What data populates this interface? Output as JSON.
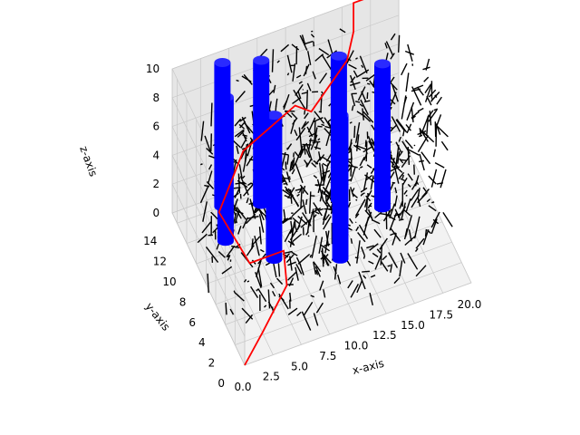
{
  "chart_data": {
    "type": "3d-line",
    "title": "",
    "xlabel": "x-axis",
    "ylabel": "y-axis",
    "zlabel": "z-axis",
    "xlim": [
      0,
      20
    ],
    "ylim": [
      0,
      15
    ],
    "zlim": [
      0,
      10
    ],
    "x_ticks": [
      "0.0",
      "2.5",
      "5.0",
      "7.5",
      "10.0",
      "12.5",
      "15.0",
      "17.5",
      "20.0"
    ],
    "y_ticks": [
      "0",
      "2",
      "4",
      "6",
      "8",
      "10",
      "12",
      "14"
    ],
    "z_ticks": [
      "0",
      "2",
      "4",
      "6",
      "8",
      "10"
    ],
    "grid": true,
    "colors": {
      "random_segments": "#000000",
      "path": "#ff0000",
      "obstacles": "#0000ff",
      "grid_line": "#c8c8c8",
      "pane": "#f2f2f2"
    },
    "obstacles": [
      {
        "x": 3,
        "y": 11,
        "z": [
          0,
          10
        ]
      },
      {
        "x": 4,
        "y": 14,
        "z": [
          0,
          10
        ]
      },
      {
        "x": 6,
        "y": 8,
        "z": [
          0,
          10
        ]
      },
      {
        "x": 7,
        "y": 13,
        "z": [
          0,
          10
        ]
      },
      {
        "x": 11,
        "y": 6,
        "z": [
          0,
          10
        ]
      },
      {
        "x": 13,
        "y": 11,
        "z": [
          0,
          10
        ]
      },
      {
        "x": 16,
        "y": 9,
        "z": [
          0,
          10
        ]
      }
    ],
    "path": [
      {
        "x": 0,
        "y": 0,
        "z": 0
      },
      {
        "x": 2,
        "y": 1,
        "z": 1
      },
      {
        "x": 5,
        "y": 3,
        "z": 2
      },
      {
        "x": 6,
        "y": 6,
        "z": 2
      },
      {
        "x": 3,
        "y": 6,
        "z": 2
      },
      {
        "x": 2,
        "y": 10,
        "z": 3
      },
      {
        "x": 5,
        "y": 12,
        "z": 5
      },
      {
        "x": 10,
        "y": 13,
        "z": 6
      },
      {
        "x": 11,
        "y": 12,
        "z": 6
      },
      {
        "x": 15,
        "y": 14,
        "z": 7
      },
      {
        "x": 16,
        "y": 15,
        "z": 8
      },
      {
        "x": 16,
        "y": 15,
        "z": 10
      },
      {
        "x": 19,
        "y": 15,
        "z": 10
      }
    ]
  }
}
